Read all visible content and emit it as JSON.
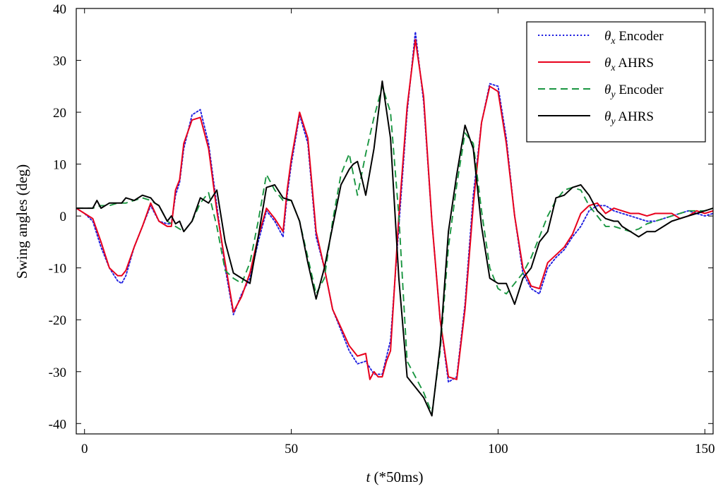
{
  "chart_data": {
    "type": "line",
    "xlabel_var": "t",
    "xlabel_rest": " (*50ms)",
    "ylabel": "Swing angles (deg)",
    "xlim": [
      -2,
      152
    ],
    "ylim": [
      -42,
      40
    ],
    "xticks": [
      0,
      50,
      100,
      150
    ],
    "yticks": [
      40,
      30,
      20,
      10,
      0,
      -10,
      -20,
      -30,
      -40
    ],
    "legend_position": "top-right",
    "series": [
      {
        "name": "θx Encoder",
        "name_symbol": "θ",
        "name_sub": "x",
        "name_text": " Encoder",
        "color": "#1f1fe0",
        "dash": "dotted",
        "x": [
          -2,
          0,
          2,
          4,
          6,
          8,
          9,
          10,
          12,
          14,
          16,
          18,
          20,
          21,
          22,
          23,
          24,
          26,
          28,
          30,
          32,
          34,
          36,
          38,
          40,
          42,
          44,
          46,
          48,
          49,
          50,
          52,
          54,
          56,
          58,
          60,
          62,
          64,
          66,
          68,
          70,
          72,
          74,
          76,
          78,
          80,
          82,
          84,
          86,
          88,
          90,
          92,
          94,
          96,
          98,
          100,
          102,
          104,
          106,
          108,
          110,
          112,
          114,
          116,
          118,
          120,
          122,
          124,
          126,
          128,
          130,
          132,
          134,
          136,
          138,
          140,
          142,
          144,
          146,
          148,
          150,
          152
        ],
        "y": [
          1.5,
          0.5,
          -1,
          -6,
          -10,
          -12.5,
          -13,
          -11.5,
          -6,
          -2,
          2,
          -1,
          -1.5,
          -1.5,
          4,
          6.5,
          13,
          19.5,
          20.5,
          14,
          2,
          -10,
          -19,
          -15,
          -12,
          -5,
          1,
          -1,
          -4,
          4,
          10,
          19.5,
          14,
          -4,
          -10,
          -18,
          -22,
          -26,
          -28.5,
          -28,
          -30.5,
          -30.5,
          -24,
          -2,
          20,
          35.5,
          22,
          -1,
          -20,
          -32,
          -31,
          -17,
          4,
          18,
          25.5,
          25,
          15,
          0,
          -11,
          -14,
          -15,
          -10,
          -8,
          -6.5,
          -4,
          -2,
          1,
          2,
          2,
          1,
          0.5,
          0,
          -0.5,
          -1,
          -1,
          -0.5,
          0,
          0.5,
          1,
          0.5,
          0,
          0.5
        ]
      },
      {
        "name": "θx AHRS",
        "name_symbol": "θ",
        "name_sub": "x",
        "name_text": " AHRS",
        "color": "#e8001c",
        "dash": "solid",
        "x": [
          -2,
          0,
          2,
          4,
          6,
          8,
          9,
          10,
          12,
          14,
          16,
          18,
          20,
          21,
          22,
          23,
          24,
          26,
          28,
          30,
          32,
          34,
          36,
          38,
          40,
          42,
          44,
          46,
          48,
          49,
          50,
          52,
          54,
          56,
          58,
          60,
          62,
          64,
          66,
          68,
          69,
          70,
          71,
          72,
          73,
          74,
          76,
          78,
          80,
          82,
          84,
          86,
          88,
          90,
          92,
          94,
          96,
          98,
          100,
          102,
          104,
          106,
          108,
          110,
          112,
          114,
          116,
          118,
          120,
          122,
          124,
          126,
          128,
          130,
          132,
          134,
          136,
          138,
          140,
          142,
          144,
          146,
          148,
          150,
          152
        ],
        "y": [
          1.5,
          0.5,
          -0.5,
          -5,
          -10,
          -11.5,
          -11.5,
          -10.5,
          -6,
          -2,
          2.5,
          -1,
          -2,
          -2,
          5,
          7,
          14,
          18.5,
          19,
          13,
          1,
          -9,
          -18.5,
          -15.5,
          -11,
          -4,
          1.5,
          -0.5,
          -3,
          5,
          11,
          20,
          15,
          -3,
          -10,
          -18,
          -21.5,
          -25,
          -27,
          -26.5,
          -31.5,
          -30,
          -31,
          -31,
          -28,
          -26,
          0,
          21,
          34,
          23,
          -1,
          -20,
          -31,
          -31.5,
          -18,
          2,
          18,
          25,
          24,
          14,
          0,
          -10,
          -13.5,
          -14,
          -9,
          -7.5,
          -6,
          -3.5,
          0.5,
          2,
          2.5,
          0.5,
          1.5,
          1,
          0.5,
          0.5,
          0,
          0.5,
          0.5,
          0.5,
          -0.5,
          0,
          1,
          0.5,
          1
        ]
      },
      {
        "name": "θy Encoder",
        "name_symbol": "θ",
        "name_sub": "y",
        "name_text": " Encoder",
        "color": "#1a9641",
        "dash": "dashed",
        "x": [
          -2,
          0,
          2,
          4,
          6,
          8,
          10,
          12,
          14,
          16,
          18,
          20,
          22,
          24,
          26,
          28,
          30,
          32,
          34,
          36,
          38,
          40,
          42,
          44,
          46,
          48,
          50,
          52,
          54,
          56,
          58,
          60,
          62,
          64,
          66,
          68,
          70,
          72,
          74,
          76,
          78,
          80,
          82,
          84,
          86,
          88,
          90,
          92,
          94,
          96,
          98,
          100,
          102,
          104,
          106,
          108,
          110,
          112,
          114,
          116,
          118,
          120,
          122,
          124,
          126,
          128,
          130,
          132,
          134,
          136,
          138,
          140,
          142,
          144,
          146,
          148,
          150,
          152
        ],
        "y": [
          1.5,
          1.5,
          1.5,
          2,
          2,
          2.5,
          2.5,
          3,
          3.5,
          3,
          2,
          -1,
          -2,
          -3,
          -1,
          2.5,
          4.5,
          -2,
          -10.5,
          -12,
          -13,
          -9,
          -1,
          8,
          5,
          3,
          3,
          -1,
          -8,
          -15,
          -12,
          -1,
          8,
          12,
          4,
          12,
          19,
          25,
          20,
          0,
          -28,
          -31,
          -34,
          -38,
          -26,
          -6,
          6,
          16,
          14,
          1,
          -10,
          -14,
          -15,
          -13,
          -11,
          -8,
          -4,
          0,
          3,
          5,
          5.5,
          5,
          2,
          0,
          -2,
          -2,
          -2.5,
          -3,
          -2.5,
          -1.5,
          -1,
          -0.5,
          0,
          0.5,
          1,
          1,
          1,
          1.5
        ]
      },
      {
        "name": "θy AHRS",
        "name_symbol": "θ",
        "name_sub": "y",
        "name_text": " AHRS",
        "color": "#000000",
        "dash": "solid",
        "x": [
          -2,
          0,
          2,
          3,
          4,
          6,
          8,
          9,
          10,
          12,
          14,
          16,
          17,
          18,
          20,
          21,
          22,
          23,
          24,
          26,
          28,
          30,
          32,
          34,
          36,
          38,
          40,
          42,
          44,
          46,
          48,
          50,
          52,
          54,
          56,
          58,
          60,
          62,
          64,
          65,
          66,
          67,
          68,
          70,
          72,
          74,
          76,
          78,
          80,
          82,
          84,
          86,
          88,
          90,
          92,
          94,
          96,
          98,
          100,
          102,
          104,
          106,
          108,
          110,
          112,
          114,
          116,
          118,
          120,
          122,
          124,
          126,
          128,
          129,
          130,
          132,
          134,
          136,
          138,
          140,
          142,
          144,
          146,
          148,
          150,
          152
        ],
        "y": [
          1.5,
          1.5,
          1.5,
          3,
          1.5,
          2.5,
          2.5,
          2.5,
          3.5,
          3,
          4,
          3.5,
          2.5,
          2,
          -1,
          0,
          -1.5,
          -1,
          -3,
          -1,
          3.5,
          2.5,
          5,
          -5,
          -11,
          -12,
          -13,
          -4,
          5.5,
          6,
          3.5,
          3,
          -1,
          -9,
          -16,
          -10,
          -2,
          6,
          9,
          10,
          10.5,
          7.5,
          4,
          13,
          26,
          15,
          -12,
          -31,
          -33,
          -35,
          -38.5,
          -25,
          -3,
          8,
          17.5,
          13,
          -2,
          -12,
          -13,
          -13,
          -17,
          -12,
          -10,
          -5,
          -3,
          3.5,
          4,
          5.5,
          6,
          4,
          1,
          -0.5,
          -1,
          -1,
          -2,
          -3,
          -4,
          -3,
          -3,
          -2,
          -1,
          -0.5,
          0,
          0.5,
          1,
          1.5
        ]
      }
    ]
  }
}
